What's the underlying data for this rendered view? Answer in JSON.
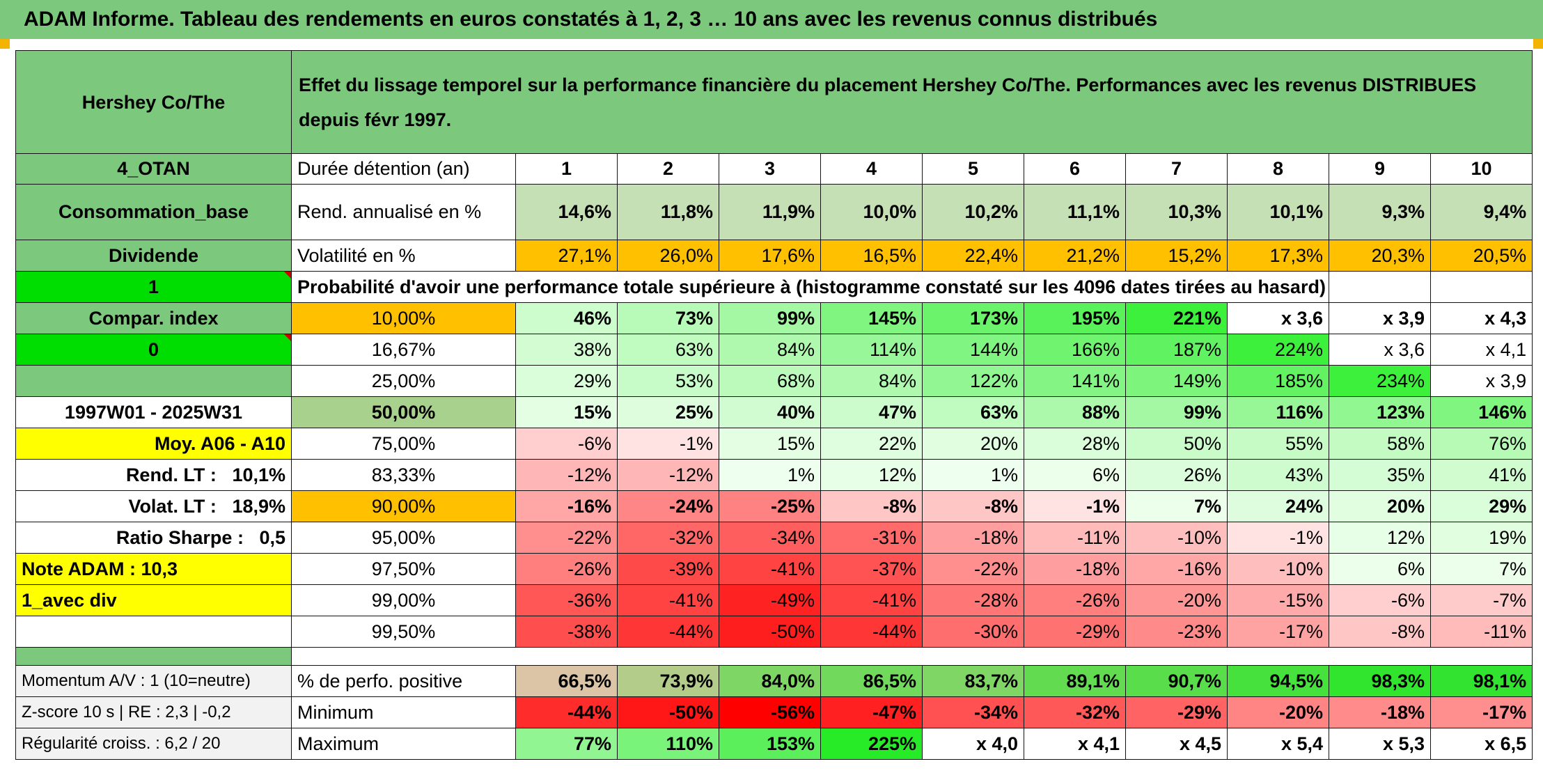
{
  "title": "ADAM Informe. Tableau des rendements en euros constatés à 1, 2, 3 … 10 ans avec les revenus connus distribués",
  "header": {
    "name": "Hershey Co/The",
    "description": "Effet du lissage temporel sur la performance financière du placement Hershey Co/The. Performances avec les revenus DISTRIBUES depuis févr 1997."
  },
  "side": {
    "code": "4_OTAN",
    "sector": "Consommation_base",
    "type": "Dividende",
    "value1": "1",
    "compar": "Compar. index",
    "value0": "0",
    "period": "1997W01 - 2025W31",
    "moy": "Moy. A06 - A10",
    "rend_lt_label": "Rend. LT :",
    "rend_lt_value": "10,1%",
    "volat_lt_label": "Volat. LT :",
    "volat_lt_value": "18,9%",
    "sharpe_label": "Ratio Sharpe :",
    "sharpe_value": "0,5",
    "note": "Note ADAM : 10,3",
    "avec_div": "1_avec div"
  },
  "years": {
    "label": "Durée détention (an)",
    "values": [
      "1",
      "2",
      "3",
      "4",
      "5",
      "6",
      "7",
      "8",
      "9",
      "10"
    ]
  },
  "rend": {
    "label": "Rend. annualisé en %",
    "values": [
      "14,6%",
      "11,8%",
      "11,9%",
      "10,0%",
      "10,2%",
      "11,1%",
      "10,3%",
      "10,1%",
      "9,3%",
      "9,4%"
    ]
  },
  "vol": {
    "label": "Volatilité en %",
    "values": [
      "27,1%",
      "26,0%",
      "17,6%",
      "16,5%",
      "22,4%",
      "21,2%",
      "15,2%",
      "17,3%",
      "20,3%",
      "20,5%"
    ]
  },
  "prob_title": "Probabilité d'avoir une performance totale supérieure à (histogramme constaté sur les 4096 dates tirées au hasard)",
  "prob_rows": [
    {
      "pct": "10,00%",
      "values": [
        "46%",
        "73%",
        "99%",
        "145%",
        "173%",
        "195%",
        "221%",
        "x 3,6",
        "x 3,9",
        "x 4,3"
      ]
    },
    {
      "pct": "16,67%",
      "values": [
        "38%",
        "63%",
        "84%",
        "114%",
        "144%",
        "166%",
        "187%",
        "224%",
        "x 3,6",
        "x 4,1"
      ]
    },
    {
      "pct": "25,00%",
      "values": [
        "29%",
        "53%",
        "68%",
        "84%",
        "122%",
        "141%",
        "149%",
        "185%",
        "234%",
        "x 3,9"
      ]
    },
    {
      "pct": "50,00%",
      "values": [
        "15%",
        "25%",
        "40%",
        "47%",
        "63%",
        "88%",
        "99%",
        "116%",
        "123%",
        "146%"
      ]
    },
    {
      "pct": "75,00%",
      "values": [
        "-6%",
        "-1%",
        "15%",
        "22%",
        "20%",
        "28%",
        "50%",
        "55%",
        "58%",
        "76%"
      ]
    },
    {
      "pct": "83,33%",
      "values": [
        "-12%",
        "-12%",
        "1%",
        "12%",
        "1%",
        "6%",
        "26%",
        "43%",
        "35%",
        "41%"
      ]
    },
    {
      "pct": "90,00%",
      "values": [
        "-16%",
        "-24%",
        "-25%",
        "-8%",
        "-8%",
        "-1%",
        "7%",
        "24%",
        "20%",
        "29%"
      ]
    },
    {
      "pct": "95,00%",
      "values": [
        "-22%",
        "-32%",
        "-34%",
        "-31%",
        "-18%",
        "-11%",
        "-10%",
        "-1%",
        "12%",
        "19%"
      ]
    },
    {
      "pct": "97,50%",
      "values": [
        "-26%",
        "-39%",
        "-41%",
        "-37%",
        "-22%",
        "-18%",
        "-16%",
        "-10%",
        "6%",
        "7%"
      ]
    },
    {
      "pct": "99,00%",
      "values": [
        "-36%",
        "-41%",
        "-49%",
        "-41%",
        "-28%",
        "-26%",
        "-20%",
        "-15%",
        "-6%",
        "-7%"
      ]
    },
    {
      "pct": "99,50%",
      "values": [
        "-38%",
        "-44%",
        "-50%",
        "-44%",
        "-30%",
        "-29%",
        "-23%",
        "-17%",
        "-8%",
        "-11%"
      ]
    }
  ],
  "stats": [
    {
      "side": "Momentum A/V : 1 (10=neutre)",
      "label": "% de perfo. positive",
      "values": [
        "66,5%",
        "73,9%",
        "84,0%",
        "86,5%",
        "83,7%",
        "89,1%",
        "90,7%",
        "94,5%",
        "98,3%",
        "98,1%"
      ]
    },
    {
      "side": "Z-score 10 s | RE : 2,3 | -0,2",
      "label": "Minimum",
      "values": [
        "-44%",
        "-50%",
        "-56%",
        "-47%",
        "-34%",
        "-32%",
        "-29%",
        "-20%",
        "-18%",
        "-17%"
      ]
    },
    {
      "side": "Régularité croiss. : 6,2 / 20",
      "label": "Maximum",
      "values": [
        "77%",
        "110%",
        "153%",
        "225%",
        "x 4,0",
        "x 4,1",
        "x 4,5",
        "x 5,4",
        "x 5,3",
        "x 6,5"
      ]
    }
  ],
  "colors": {
    "header_green": "#7cc87c",
    "light_green": "#c5e0b4",
    "orange": "#ffc000",
    "yellow": "#ffff00",
    "bright_green": "#00dd00",
    "red_text": "#d00000"
  }
}
